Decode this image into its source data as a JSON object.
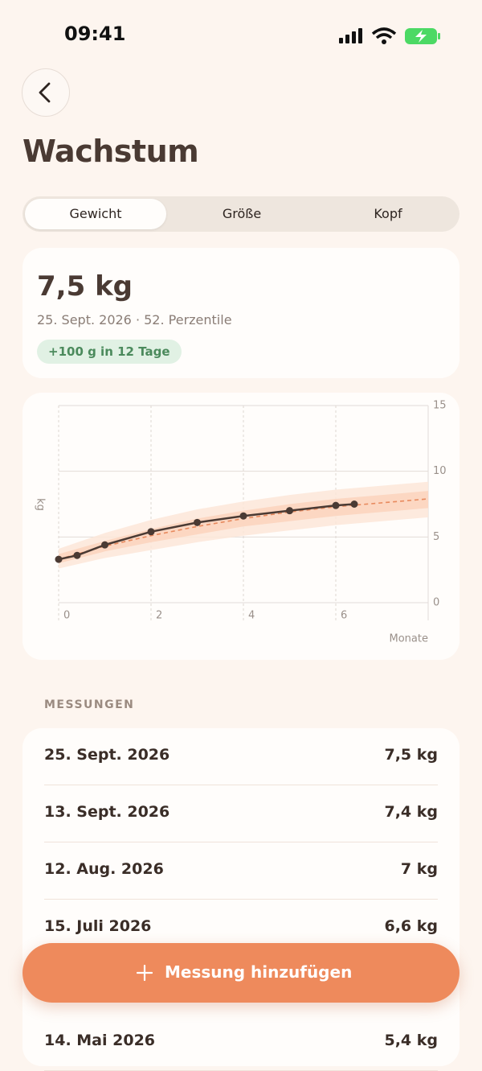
{
  "status_bar": {
    "time": "09:41"
  },
  "header": {
    "title": "Wachstum"
  },
  "tabs": {
    "items": [
      "Gewicht",
      "Größe",
      "Kopf"
    ],
    "selected": 0
  },
  "summary": {
    "value": "7,5 kg",
    "subtitle": "25. Sept. 2026 · 52. Perzentile",
    "badge": "+100 g in 12 Tage"
  },
  "chart_data": {
    "type": "line",
    "y_label": "kg",
    "x_label": "Monate",
    "xlim": [
      0,
      8
    ],
    "ylim": [
      0,
      15
    ],
    "xticks": [
      0,
      2,
      4,
      6
    ],
    "yticks": [
      0,
      5,
      10,
      15
    ],
    "grid": true,
    "x": [
      0,
      0.4,
      1,
      2,
      3,
      4,
      5,
      6,
      6.4
    ],
    "series": [
      {
        "color": "#4a3a33",
        "values": [
          3.3,
          3.6,
          4.4,
          5.4,
          6.1,
          6.6,
          7.0,
          7.4,
          7.5
        ]
      }
    ],
    "reference": {
      "x": [
        0,
        1,
        2,
        3,
        4,
        5,
        6,
        7,
        8
      ],
      "median": [
        3.3,
        4.3,
        5.1,
        5.8,
        6.4,
        6.9,
        7.3,
        7.6,
        7.9
      ],
      "median_color": "#e88a5e",
      "bands": [
        {
          "color": "#fde6d8",
          "lower": [
            2.6,
            3.4,
            4.0,
            4.6,
            5.1,
            5.5,
            5.9,
            6.2,
            6.5
          ],
          "upper": [
            4.1,
            5.3,
            6.3,
            7.1,
            7.7,
            8.2,
            8.6,
            8.9,
            9.2
          ]
        },
        {
          "color": "#fbd3bd",
          "lower": [
            3.0,
            3.9,
            4.6,
            5.2,
            5.8,
            6.2,
            6.6,
            6.9,
            7.2
          ],
          "upper": [
            3.7,
            4.7,
            5.6,
            6.4,
            7.0,
            7.5,
            7.9,
            8.2,
            8.5
          ]
        }
      ]
    }
  },
  "measurements": {
    "title": "MESSUNGEN",
    "rows": [
      [
        "25. Sept. 2026",
        "7,5 kg"
      ],
      [
        "13. Sept. 2026",
        "7,4 kg"
      ],
      [
        "12. Aug. 2026",
        "7 kg"
      ],
      [
        "15. Juli 2026",
        "6,6 kg"
      ],
      [
        "14. Mai 2026",
        "5,4 kg"
      ]
    ]
  },
  "button": {
    "label": "Messung hinzufügen"
  }
}
